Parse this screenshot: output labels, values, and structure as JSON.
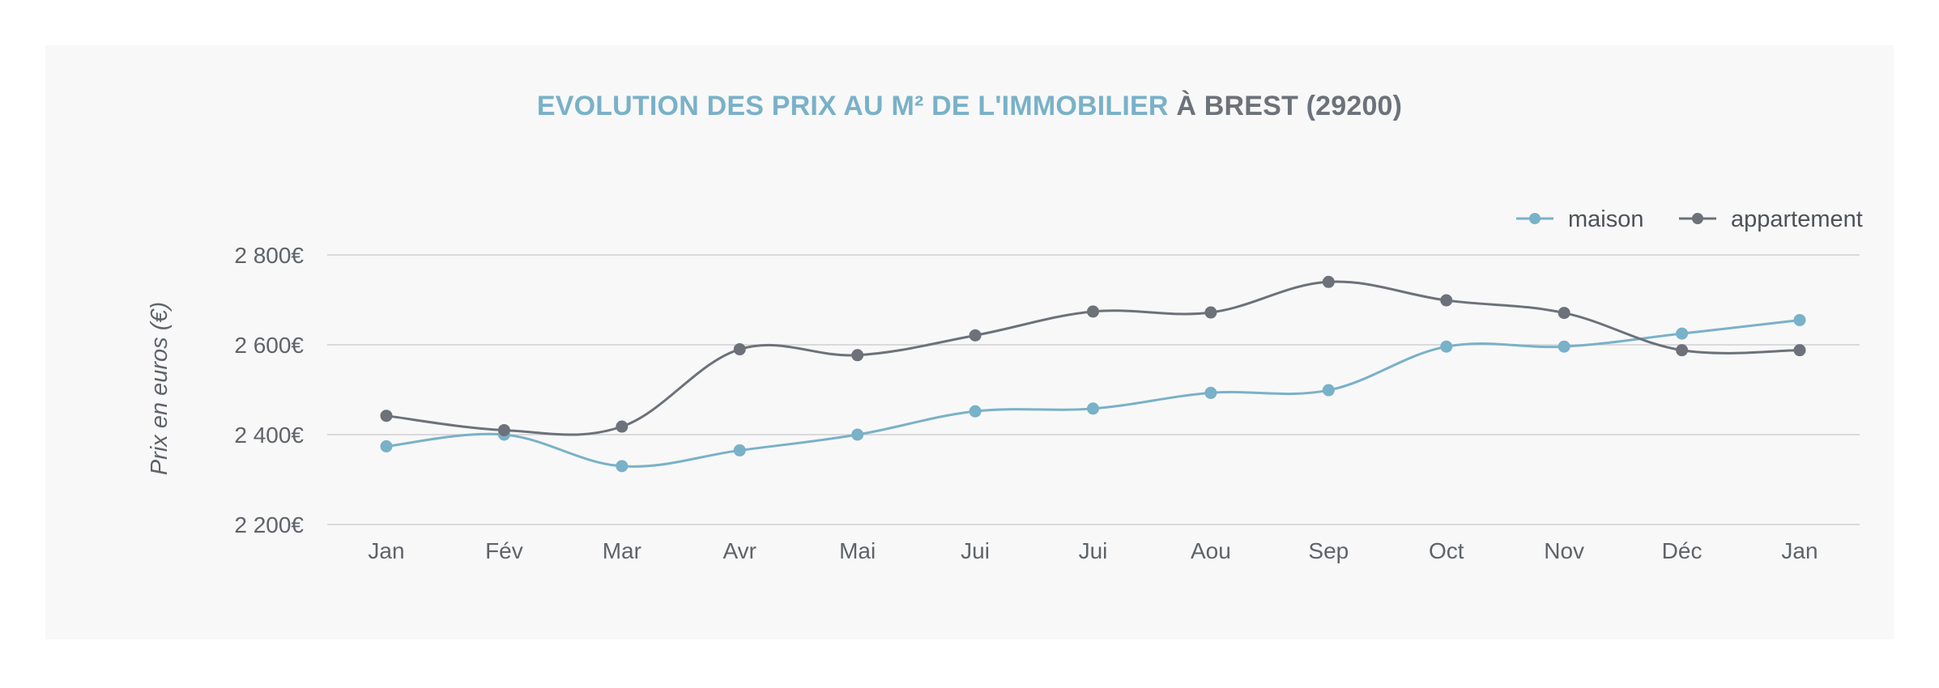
{
  "chart_data": {
    "type": "line",
    "title_part1": "EVOLUTION DES PRIX AU M² DE L'IMMOBILIER",
    "title_part2": "À BREST (29200)",
    "ylabel": "Prix en euros (€)",
    "xlabel": "",
    "categories": [
      "Jan",
      "Fév",
      "Mar",
      "Avr",
      "Mai",
      "Jui",
      "Jui",
      "Aou",
      "Sep",
      "Oct",
      "Nov",
      "Déc",
      "Jan"
    ],
    "ylim": [
      2200,
      2800
    ],
    "yticks": [
      2200,
      2400,
      2600,
      2800
    ],
    "ytick_labels": [
      "2 200€",
      "2 400€",
      "2 600€",
      "2 800€"
    ],
    "grid": true,
    "legend_position": "top-right",
    "series": [
      {
        "name": "maison",
        "color": "#79b1c8",
        "values": [
          2374,
          2400,
          2330,
          2365,
          2400,
          2452,
          2458,
          2493,
          2499,
          2596,
          2596,
          2625,
          2655
        ]
      },
      {
        "name": "appartement",
        "color": "#6c717a",
        "values": [
          2442,
          2410,
          2418,
          2590,
          2577,
          2621,
          2674,
          2672,
          2740,
          2699,
          2671,
          2588,
          2588
        ]
      }
    ]
  }
}
